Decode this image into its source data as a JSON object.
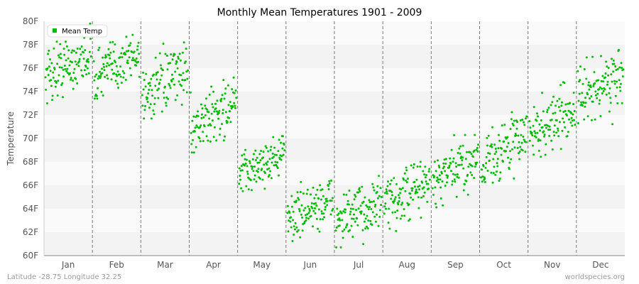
{
  "chart_data": {
    "type": "scatter",
    "title": "Monthly Mean Temperatures 1901 - 2009",
    "ylabel": "Temperature",
    "xlabel": "",
    "categories": [
      "Jan",
      "Feb",
      "Mar",
      "Apr",
      "May",
      "Jun",
      "Jul",
      "Aug",
      "Sep",
      "Oct",
      "Nov",
      "Dec"
    ],
    "yticks": [
      "60F",
      "62F",
      "64F",
      "66F",
      "68F",
      "70F",
      "72F",
      "74F",
      "76F",
      "78F",
      "80F"
    ],
    "ylim": [
      60,
      80
    ],
    "grid": "alternating horizontal bands, dashed vertical month separators",
    "legend": {
      "position": "top-left",
      "entries": [
        "Mean Temp"
      ]
    },
    "series": [
      {
        "name": "Mean Temp",
        "color": "#00bb00",
        "years": [
          1901,
          2009
        ],
        "month_ranges": [
          {
            "month": "Jan",
            "start": 75.4,
            "end": 77.2,
            "min": 73.0,
            "max": 79.8
          },
          {
            "month": "Feb",
            "start": 75.2,
            "end": 77.4,
            "min": 73.4,
            "max": 79.7
          },
          {
            "month": "Mar",
            "start": 73.6,
            "end": 76.0,
            "min": 71.7,
            "max": 78.2
          },
          {
            "month": "Apr",
            "start": 70.8,
            "end": 73.1,
            "min": 68.8,
            "max": 75.2
          },
          {
            "month": "May",
            "start": 66.8,
            "end": 68.8,
            "min": 65.2,
            "max": 70.2
          },
          {
            "month": "Jun",
            "start": 63.2,
            "end": 64.8,
            "min": 60.9,
            "max": 66.4
          },
          {
            "month": "Jul",
            "start": 62.8,
            "end": 64.6,
            "min": 60.7,
            "max": 66.8
          },
          {
            "month": "Aug",
            "start": 64.1,
            "end": 66.4,
            "min": 62.0,
            "max": 68.4
          },
          {
            "month": "Sep",
            "start": 66.0,
            "end": 68.6,
            "min": 63.9,
            "max": 70.3
          },
          {
            "month": "Oct",
            "start": 67.8,
            "end": 70.4,
            "min": 65.9,
            "max": 72.6
          },
          {
            "month": "Nov",
            "start": 70.3,
            "end": 72.6,
            "min": 68.3,
            "max": 74.8
          },
          {
            "month": "Dec",
            "start": 73.2,
            "end": 75.7,
            "min": 71.2,
            "max": 78.3
          }
        ]
      }
    ]
  },
  "footer": {
    "left": "Latitude -28.75 Longitude 32.25",
    "right": "worldspecies.org"
  }
}
